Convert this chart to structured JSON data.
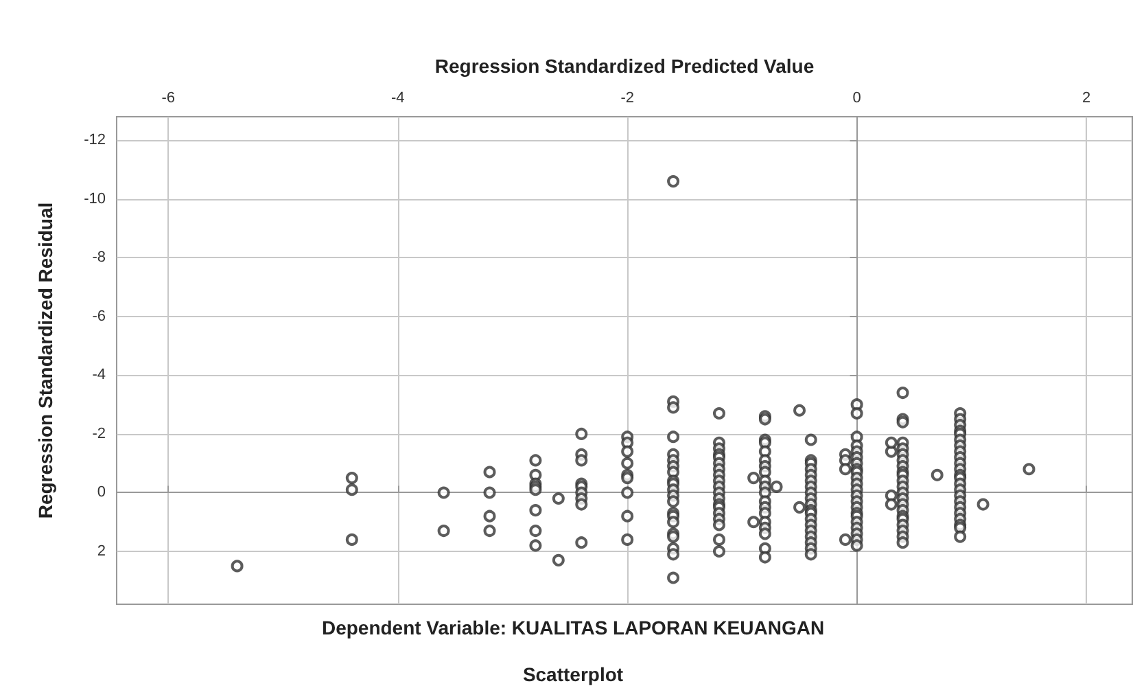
{
  "chart_data": {
    "type": "scatter",
    "title": "Scatterplot",
    "subtitle": "Dependent Variable: KUALITAS LAPORAN KEUANGAN",
    "xlabel": "Regression Standardized Predicted Value",
    "ylabel": "Regression Standardized Residual",
    "xlim": [
      -6.45,
      2.4
    ],
    "xticks": [
      -6,
      -4,
      -2,
      0,
      2
    ],
    "ylim": [
      3.8,
      -12.8
    ],
    "yticks": [
      -12,
      -10,
      -8,
      -6,
      -4,
      -2,
      0,
      2
    ],
    "grid": true,
    "marker": "circle",
    "series": [
      {
        "color": "#333333",
        "x": [
          -5.4,
          -4.4,
          -4.4,
          -4.4,
          -3.6,
          -3.6,
          -3.2,
          -3.2,
          -3.2,
          -3.2,
          -2.8,
          -2.8,
          -2.8,
          -2.8,
          -2.8,
          -2.8,
          -2.8,
          -2.8,
          -2.6,
          -2.6,
          -2.4,
          -2.4,
          -2.4,
          -2.4,
          -2.4,
          -2.4,
          -2.4,
          -2.4,
          -2.4,
          -2.0,
          -2.0,
          -2.0,
          -2.0,
          -2.0,
          -2.0,
          -2.0,
          -2.0,
          -2.0,
          -1.6,
          -1.6,
          -1.6,
          -1.6,
          -1.6,
          -1.6,
          -1.6,
          -1.6,
          -1.6,
          -1.6,
          -1.6,
          -1.6,
          -1.6,
          -1.6,
          -1.6,
          -1.6,
          -1.6,
          -1.6,
          -1.6,
          -1.6,
          -1.6,
          -1.2,
          -1.2,
          -1.2,
          -1.2,
          -1.2,
          -1.2,
          -1.2,
          -1.2,
          -1.2,
          -1.2,
          -1.2,
          -1.2,
          -1.2,
          -1.2,
          -1.2,
          -1.2,
          -1.2,
          -1.2,
          -1.2,
          -0.9,
          -0.9,
          -0.8,
          -0.8,
          -0.8,
          -0.8,
          -0.8,
          -0.8,
          -0.8,
          -0.8,
          -0.8,
          -0.8,
          -0.8,
          -0.8,
          -0.8,
          -0.8,
          -0.8,
          -0.8,
          -0.8,
          -0.8,
          -0.8,
          -0.7,
          -0.5,
          -0.5,
          -0.4,
          -0.4,
          -0.4,
          -0.4,
          -0.4,
          -0.4,
          -0.4,
          -0.4,
          -0.4,
          -0.4,
          -0.4,
          -0.4,
          -0.4,
          -0.4,
          -0.4,
          -0.4,
          -0.4,
          -0.4,
          -0.4,
          -0.1,
          -0.1,
          -0.1,
          -0.1,
          0.0,
          0.0,
          0.0,
          0.0,
          0.0,
          0.0,
          0.0,
          0.0,
          0.0,
          0.0,
          0.0,
          0.0,
          0.0,
          0.0,
          0.0,
          0.0,
          0.0,
          0.0,
          0.0,
          0.0,
          0.0,
          0.0,
          0.3,
          0.3,
          0.3,
          0.3,
          0.4,
          0.4,
          0.4,
          0.4,
          0.4,
          0.4,
          0.4,
          0.4,
          0.4,
          0.4,
          0.4,
          0.4,
          0.4,
          0.4,
          0.4,
          0.4,
          0.4,
          0.4,
          0.4,
          0.4,
          0.4,
          0.4,
          0.7,
          0.9,
          0.9,
          0.9,
          0.9,
          0.9,
          0.9,
          0.9,
          0.9,
          0.9,
          0.9,
          0.9,
          0.9,
          0.9,
          0.9,
          0.9,
          0.9,
          0.9,
          0.9,
          0.9,
          0.9,
          0.9,
          0.9,
          0.9,
          1.1,
          1.5
        ],
        "values": [
          2.5,
          -0.5,
          -0.1,
          1.6,
          0.0,
          1.3,
          -0.7,
          0.0,
          0.8,
          1.3,
          -1.1,
          -0.6,
          -0.3,
          -0.2,
          -0.1,
          0.6,
          1.3,
          1.8,
          0.2,
          2.3,
          -2.0,
          -1.3,
          -1.1,
          -0.3,
          -0.2,
          0.0,
          0.2,
          0.4,
          1.7,
          -1.9,
          -1.7,
          -1.4,
          -1.0,
          -0.6,
          -0.5,
          0.0,
          0.8,
          1.6,
          -10.6,
          -3.1,
          -2.9,
          -1.9,
          -1.3,
          -1.1,
          -0.9,
          -0.7,
          -0.4,
          -0.3,
          -0.1,
          0.1,
          0.3,
          0.7,
          0.8,
          1.0,
          1.4,
          1.5,
          1.9,
          2.1,
          2.9,
          -2.7,
          -1.7,
          -1.5,
          -1.3,
          -1.2,
          -1.0,
          -0.8,
          -0.6,
          -0.4,
          -0.2,
          0.0,
          0.2,
          0.4,
          0.5,
          0.7,
          0.9,
          1.1,
          1.6,
          2.0,
          -0.5,
          1.0,
          -2.6,
          -2.5,
          -1.8,
          -1.7,
          -1.4,
          -1.1,
          -0.9,
          -0.7,
          -0.4,
          -0.2,
          0.0,
          0.3,
          0.5,
          0.7,
          1.0,
          1.2,
          1.4,
          1.9,
          2.2,
          -0.2,
          -2.8,
          0.5,
          -1.8,
          -1.1,
          -1.0,
          -0.8,
          -0.6,
          -0.4,
          -0.2,
          0.0,
          0.2,
          0.4,
          0.6,
          0.7,
          0.9,
          1.1,
          1.3,
          1.5,
          1.7,
          1.9,
          2.1,
          -1.3,
          -1.1,
          -0.8,
          1.6,
          -3.0,
          -2.7,
          -1.9,
          -1.6,
          -1.4,
          -1.2,
          -1.0,
          -0.8,
          -0.7,
          -0.5,
          -0.3,
          -0.1,
          0.1,
          0.3,
          0.5,
          0.7,
          0.8,
          1.0,
          1.2,
          1.4,
          1.6,
          1.8,
          -1.4,
          -1.7,
          0.1,
          0.4,
          -3.4,
          -2.5,
          -2.4,
          -1.7,
          -1.5,
          -1.3,
          -1.1,
          -0.9,
          -0.7,
          -0.6,
          -0.4,
          -0.2,
          0.0,
          0.2,
          0.4,
          0.6,
          0.8,
          0.9,
          1.1,
          1.3,
          1.5,
          1.7,
          -0.6,
          -2.7,
          -2.5,
          -2.3,
          -2.1,
          -2.0,
          -1.8,
          -1.6,
          -1.4,
          -1.2,
          -1.0,
          -0.8,
          -0.6,
          -0.5,
          -0.3,
          -0.1,
          0.1,
          0.3,
          0.5,
          0.7,
          0.9,
          1.1,
          1.2,
          1.5,
          0.4,
          -0.8
        ]
      }
    ]
  }
}
